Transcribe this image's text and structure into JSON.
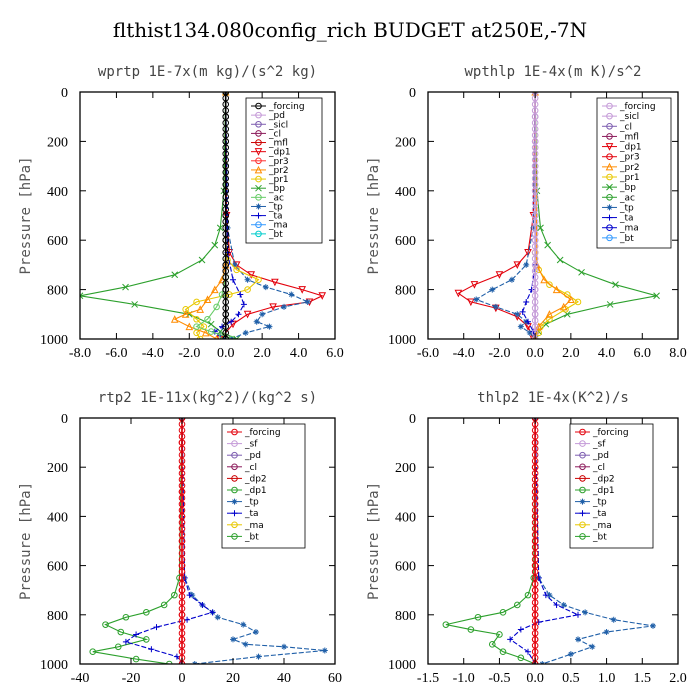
{
  "figure_title": "flthist134.080config_rich  BUDGET at250E,-7N",
  "chart_data": [
    {
      "type": "line",
      "title": "wprtp  1E-7x(m kg)/(s^2 kg)",
      "ylabel": "Pressure [hPa]",
      "xlim": [
        -8,
        6
      ],
      "ylim": [
        1000,
        0
      ],
      "xticks": [
        "-8.0",
        "-6.0",
        "-4.0",
        "-2.0",
        "0.0",
        "2.0",
        "4.0",
        "6.0"
      ],
      "xtick_values": [
        -8,
        -6,
        -4,
        -2,
        0,
        2,
        4,
        6
      ],
      "yticks": [
        "0",
        "200",
        "400",
        "600",
        "800",
        "1000"
      ],
      "legend_position": "top-right",
      "legend": [
        "_forcing",
        "_pd",
        "_sicl",
        "_cl",
        "_mfl",
        "_dp1",
        "_pr3",
        "_pr2",
        "_pr1",
        "_bp",
        "_ac",
        "_tp",
        "_ta",
        "_ma",
        "_bt"
      ],
      "series": [
        {
          "name": "_bp",
          "color": "#2ca02c",
          "marker": "x",
          "x": [
            0,
            -0.1,
            -0.3,
            -0.6,
            -1.3,
            -2.8,
            -5.5,
            -8,
            -5,
            -2,
            -0.8,
            -0.3,
            0.6
          ],
          "y": [
            0,
            400,
            550,
            620,
            680,
            740,
            790,
            825,
            860,
            900,
            940,
            970,
            1000
          ]
        },
        {
          "name": "_dp1",
          "color": "#e3000b",
          "marker": "v",
          "x": [
            0,
            0.05,
            0.2,
            0.6,
            1.4,
            2.7,
            4.2,
            5.3,
            4.6,
            2.6,
            1.2,
            0.4,
            -0.3
          ],
          "y": [
            0,
            500,
            650,
            700,
            740,
            770,
            800,
            825,
            850,
            870,
            900,
            940,
            1000
          ]
        },
        {
          "name": "_tp",
          "color": "#1f5fa8",
          "marker": "*",
          "dashed": true,
          "x": [
            0,
            0.1,
            0.5,
            1.2,
            2.2,
            3.6,
            4.5,
            3.2,
            2,
            1.7,
            2.4,
            1.1,
            0.3
          ],
          "y": [
            0,
            550,
            700,
            760,
            790,
            820,
            850,
            870,
            900,
            930,
            950,
            975,
            1000
          ]
        },
        {
          "name": "_pr1",
          "color": "#e8c800",
          "marker": "o",
          "x": [
            0,
            0,
            0.1,
            0.6,
            1.8,
            1.2,
            0.2,
            -1.6,
            -2.2,
            -1.6,
            -1.2,
            -1.6,
            -1.4
          ],
          "y": [
            0,
            600,
            680,
            720,
            760,
            800,
            820,
            850,
            880,
            920,
            950,
            975,
            1000
          ]
        },
        {
          "name": "_pr2",
          "color": "#ff8c00",
          "marker": "^",
          "x": [
            0,
            0,
            -0.2,
            -0.6,
            -1,
            -1.4,
            -2.2,
            -2.8,
            -2,
            -1.1,
            -0.5
          ],
          "y": [
            0,
            700,
            760,
            800,
            840,
            880,
            900,
            920,
            950,
            975,
            1000
          ]
        },
        {
          "name": "_ta",
          "color": "#0000cc",
          "marker": "+",
          "dashed": true,
          "x": [
            0,
            0.1,
            0.4,
            0.8,
            1,
            0.7,
            0.3,
            -0.2,
            -0.6,
            -0.3,
            0
          ],
          "y": [
            0,
            650,
            760,
            820,
            860,
            900,
            930,
            950,
            970,
            985,
            1000
          ]
        },
        {
          "name": "_ac",
          "color": "#66cc66",
          "marker": "o",
          "x": [
            0,
            0,
            -0.2,
            -0.5,
            -1,
            -1.6,
            -0.8,
            -0.2,
            0.3
          ],
          "y": [
            0,
            750,
            820,
            870,
            920,
            950,
            970,
            985,
            1000
          ]
        },
        {
          "name": "_forcing",
          "color": "#000000",
          "marker": "o",
          "x": [
            0,
            0,
            0,
            0,
            0,
            0,
            0,
            0,
            0,
            0,
            0
          ],
          "y": [
            0,
            100,
            200,
            300,
            400,
            500,
            600,
            700,
            800,
            900,
            1000
          ]
        }
      ]
    },
    {
      "type": "line",
      "title": "wpthlp  1E-4x(m K)/s^2",
      "ylabel": "Pressure [hPa]",
      "xlim": [
        -6,
        8
      ],
      "ylim": [
        1000,
        0
      ],
      "xticks": [
        "-6.0",
        "-4.0",
        "-2.0",
        "0.0",
        "2.0",
        "4.0",
        "6.0",
        "8.0"
      ],
      "xtick_values": [
        -6,
        -4,
        -2,
        0,
        2,
        4,
        6,
        8
      ],
      "yticks": [
        "0",
        "200",
        "400",
        "600",
        "800",
        "1000"
      ],
      "legend_position": "top-right",
      "legend": [
        "_forcing",
        "_sicl",
        "_cl",
        "_mfl",
        "_dp1",
        "_pr3",
        "_pr2",
        "_pr1",
        "_bp",
        "_ac",
        "_tp",
        "_ta",
        "_ma",
        "_bt"
      ],
      "series": [
        {
          "name": "_bp",
          "color": "#2ca02c",
          "marker": "x",
          "x": [
            0,
            0.1,
            0.3,
            0.7,
            1.4,
            2.6,
            4.5,
            6.8,
            4.2,
            1.8,
            0.6,
            0.2,
            0
          ],
          "y": [
            0,
            400,
            550,
            620,
            680,
            730,
            780,
            825,
            860,
            900,
            940,
            970,
            1000
          ]
        },
        {
          "name": "_dp1",
          "color": "#e3000b",
          "marker": "v",
          "x": [
            0,
            -0.1,
            -0.4,
            -1,
            -2,
            -3.4,
            -4.3,
            -3.6,
            -2.2,
            -1,
            -0.4,
            -0.1
          ],
          "y": [
            0,
            500,
            650,
            700,
            740,
            780,
            815,
            850,
            875,
            910,
            950,
            1000
          ]
        },
        {
          "name": "_tp",
          "color": "#1f5fa8",
          "marker": "*",
          "dashed": true,
          "x": [
            0,
            -0.1,
            -0.5,
            -1.3,
            -2.4,
            -3.3,
            -2.2,
            -1,
            -0.5,
            -0.8,
            -0.3,
            0
          ],
          "y": [
            0,
            550,
            700,
            760,
            800,
            840,
            870,
            900,
            930,
            950,
            975,
            1000
          ]
        },
        {
          "name": "_pr1",
          "color": "#e8c800",
          "marker": "o",
          "x": [
            0,
            0,
            0.2,
            0.8,
            1.8,
            2.4,
            1.7,
            0.8,
            0.3,
            0.2,
            0
          ],
          "y": [
            0,
            650,
            720,
            780,
            820,
            850,
            880,
            920,
            950,
            975,
            1000
          ]
        },
        {
          "name": "_pr2",
          "color": "#ff8c00",
          "marker": "^",
          "x": [
            0,
            0.1,
            0.5,
            1.2,
            2,
            1.6,
            0.8,
            0.2,
            0
          ],
          "y": [
            0,
            700,
            760,
            800,
            840,
            870,
            900,
            950,
            1000
          ]
        },
        {
          "name": "_ta",
          "color": "#0000cc",
          "marker": "+",
          "dashed": true,
          "x": [
            0,
            0,
            -0.2,
            -0.5,
            -0.7,
            -0.4,
            -0.1,
            0
          ],
          "y": [
            0,
            700,
            800,
            850,
            890,
            930,
            970,
            1000
          ]
        },
        {
          "name": "_forcing",
          "color": "#c59bd8",
          "marker": "o",
          "x": [
            0,
            0,
            0,
            0,
            0,
            0,
            0,
            0,
            0,
            0,
            0
          ],
          "y": [
            0,
            100,
            200,
            300,
            400,
            500,
            600,
            700,
            800,
            900,
            1000
          ]
        }
      ]
    },
    {
      "type": "line",
      "title": "rtp2  1E-11x(kg^2)/(kg^2 s)",
      "ylabel": "Pressure [hPa]",
      "xlim": [
        -40,
        60
      ],
      "ylim": [
        1000,
        0
      ],
      "xticks": [
        "-40",
        "-20",
        "0",
        "20",
        "40",
        "60"
      ],
      "xtick_values": [
        -40,
        -20,
        0,
        20,
        40,
        60
      ],
      "yticks": [
        "0",
        "200",
        "400",
        "600",
        "800",
        "1000"
      ],
      "legend_position": "top-right",
      "legend": [
        "_forcing",
        "_sf",
        "_pd",
        "_cl",
        "_dp2",
        "_dp1",
        "_tp",
        "_ta",
        "_ma",
        "_bt"
      ],
      "series": [
        {
          "name": "_dp1",
          "color": "#2ca02c",
          "marker": "o",
          "x": [
            0,
            -1,
            -3,
            -7,
            -14,
            -22,
            -30,
            -24,
            -14,
            -25,
            -35,
            -18,
            -5
          ],
          "y": [
            0,
            650,
            720,
            760,
            790,
            810,
            840,
            870,
            900,
            930,
            950,
            980,
            1000
          ]
        },
        {
          "name": "_tp",
          "color": "#1f5fa8",
          "marker": "*",
          "dashed": true,
          "x": [
            0,
            1,
            4,
            8,
            12,
            14,
            24,
            29,
            20,
            25,
            40,
            56,
            30,
            5
          ],
          "y": [
            0,
            650,
            720,
            760,
            790,
            810,
            840,
            870,
            900,
            920,
            930,
            945,
            970,
            1000
          ]
        },
        {
          "name": "_ta",
          "color": "#0000cc",
          "marker": "+",
          "dashed": true,
          "x": [
            0,
            1,
            3,
            8,
            12,
            2,
            -10,
            -18,
            -22,
            -12,
            -2,
            0
          ],
          "y": [
            0,
            650,
            720,
            760,
            790,
            820,
            850,
            880,
            910,
            940,
            970,
            1000
          ]
        },
        {
          "name": "_forcing",
          "color": "#e3000b",
          "marker": "o",
          "x": [
            0,
            0,
            0,
            0,
            0,
            0,
            0,
            0,
            0,
            0,
            0
          ],
          "y": [
            0,
            100,
            200,
            300,
            400,
            500,
            600,
            700,
            800,
            900,
            1000
          ]
        }
      ]
    },
    {
      "type": "line",
      "title": "thlp2  1E-4x(K^2)/s",
      "ylabel": "Pressure [hPa]",
      "xlim": [
        -1.5,
        2.0
      ],
      "ylim": [
        1000,
        0
      ],
      "xticks": [
        "-1.5",
        "-1.0",
        "-0.5",
        "0.0",
        "0.5",
        "1.0",
        "1.5",
        "2.0"
      ],
      "xtick_values": [
        -1.5,
        -1,
        -0.5,
        0,
        0.5,
        1,
        1.5,
        2
      ],
      "yticks": [
        "0",
        "200",
        "400",
        "600",
        "800",
        "1000"
      ],
      "legend_position": "top-right",
      "legend": [
        "_forcing",
        "_sf",
        "_pd",
        "_cl",
        "_dp2",
        "_dp1",
        "_tp",
        "_ta",
        "_ma",
        "_bt"
      ],
      "series": [
        {
          "name": "_dp1",
          "color": "#2ca02c",
          "marker": "o",
          "x": [
            0,
            -0.02,
            -0.1,
            -0.25,
            -0.45,
            -0.8,
            -1.25,
            -0.9,
            -0.5,
            -0.6,
            -0.45,
            -0.2,
            0
          ],
          "y": [
            0,
            650,
            720,
            760,
            790,
            810,
            840,
            860,
            880,
            920,
            950,
            975,
            1000
          ]
        },
        {
          "name": "_tp",
          "color": "#1f5fa8",
          "marker": "*",
          "dashed": true,
          "x": [
            0,
            0.05,
            0.2,
            0.4,
            0.7,
            1.1,
            1.65,
            1,
            0.6,
            0.8,
            0.5,
            0.1
          ],
          "y": [
            0,
            650,
            720,
            760,
            790,
            820,
            845,
            870,
            900,
            930,
            960,
            1000
          ]
        },
        {
          "name": "_ta",
          "color": "#0000cc",
          "marker": "+",
          "dashed": true,
          "x": [
            0,
            0.05,
            0.15,
            0.3,
            0.6,
            0.05,
            -0.2,
            -0.35,
            -0.1,
            0
          ],
          "y": [
            0,
            650,
            720,
            760,
            800,
            830,
            860,
            900,
            950,
            1000
          ]
        },
        {
          "name": "_forcing",
          "color": "#e3000b",
          "marker": "o",
          "x": [
            0,
            0,
            0,
            0,
            0,
            0,
            0,
            0,
            0,
            0,
            0
          ],
          "y": [
            0,
            100,
            200,
            300,
            400,
            500,
            600,
            700,
            800,
            900,
            1000
          ]
        }
      ]
    }
  ]
}
